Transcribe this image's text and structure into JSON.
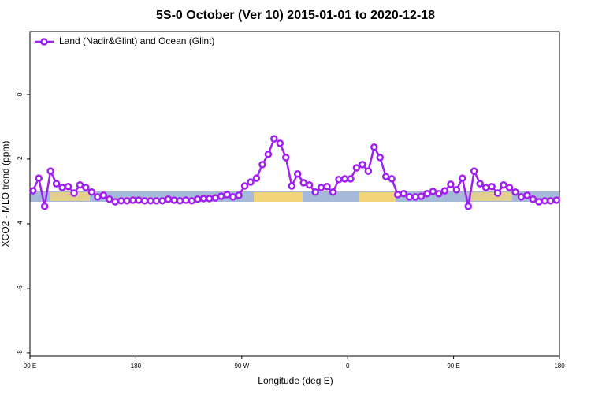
{
  "chart_data": {
    "type": "line",
    "title": "5S-0 October (Ver 10)   2015-01-01 to 2020-12-18",
    "x_label": "Longitude (deg E)",
    "y_label": "XCO2 - MLO trend (ppm)",
    "x": [
      92.5,
      97.5,
      102.5,
      107.5,
      112.5,
      117.5,
      122.5,
      127.5,
      132.5,
      137.5,
      142.5,
      147.5,
      152.5,
      157.5,
      162.5,
      167.5,
      172.5,
      177.5,
      182.5,
      187.5,
      192.5,
      197.5,
      202.5,
      207.5,
      212.5,
      217.5,
      222.5,
      227.5,
      232.5,
      237.5,
      242.5,
      247.5,
      252.5,
      257.5,
      262.5,
      267.5,
      272.5,
      277.5,
      282.5,
      287.5,
      292.5,
      297.5,
      302.5,
      307.5,
      312.5,
      317.5,
      322.5,
      327.5,
      332.5,
      337.5,
      342.5,
      347.5,
      352.5,
      357.5,
      362.5,
      367.5,
      372.5,
      377.5,
      382.5,
      387.5,
      392.5,
      397.5,
      402.5,
      407.5,
      412.5,
      417.5,
      422.5,
      427.5,
      432.5,
      437.5,
      442.5,
      447.5,
      452.5,
      457.5,
      462.5,
      467.5,
      472.5,
      477.5,
      482.5,
      487.5,
      492.5,
      497.5,
      502.5,
      507.5,
      512.5,
      517.5,
      522.5,
      527.5,
      532.5,
      537.5
    ],
    "series": [
      {
        "name": "Land (Nadir&Glint) and Ocean (Glint)",
        "color": "#a020f0",
        "values": [
          -2.98,
          -2.59,
          -3.46,
          -2.37,
          -2.76,
          -2.88,
          -2.85,
          -3.05,
          -2.8,
          -2.88,
          -3.02,
          -3.17,
          -3.12,
          -3.24,
          -3.32,
          -3.29,
          -3.29,
          -3.27,
          -3.27,
          -3.29,
          -3.29,
          -3.29,
          -3.29,
          -3.24,
          -3.27,
          -3.29,
          -3.27,
          -3.29,
          -3.24,
          -3.22,
          -3.22,
          -3.2,
          -3.15,
          -3.1,
          -3.17,
          -3.12,
          -2.83,
          -2.71,
          -2.59,
          -2.17,
          -1.85,
          -1.37,
          -1.51,
          -1.95,
          -2.83,
          -2.46,
          -2.73,
          -2.8,
          -3.02,
          -2.88,
          -2.85,
          -3.02,
          -2.63,
          -2.61,
          -2.61,
          -2.27,
          -2.17,
          -2.37,
          -1.63,
          -1.95,
          -2.54,
          -2.61,
          -3.1,
          -3.07,
          -3.17,
          -3.17,
          -3.15,
          -3.07,
          -3.0,
          -3.07,
          -2.98,
          -2.78,
          -2.95,
          -2.59,
          -3.46,
          -2.37,
          -2.76,
          -2.88,
          -2.85,
          -3.05,
          -2.8,
          -2.88,
          -3.02,
          -3.17,
          -3.12,
          -3.24,
          -3.32,
          -3.29,
          -3.29,
          -3.27
        ]
      }
    ],
    "xlim": [
      90,
      540
    ],
    "xticks": [
      {
        "value": 90,
        "label": "90 E"
      },
      180,
      {
        "value": 270,
        "label": "90 W"
      },
      {
        "value": 360,
        "label": "0"
      },
      {
        "value": 450,
        "label": "90 E"
      },
      {
        "value": 540,
        "label": "180"
      }
    ],
    "ylim": [
      -8.1,
      1.95
    ],
    "yticks": [
      0,
      -2,
      -4,
      -6,
      -8
    ],
    "legend": "top-left"
  }
}
